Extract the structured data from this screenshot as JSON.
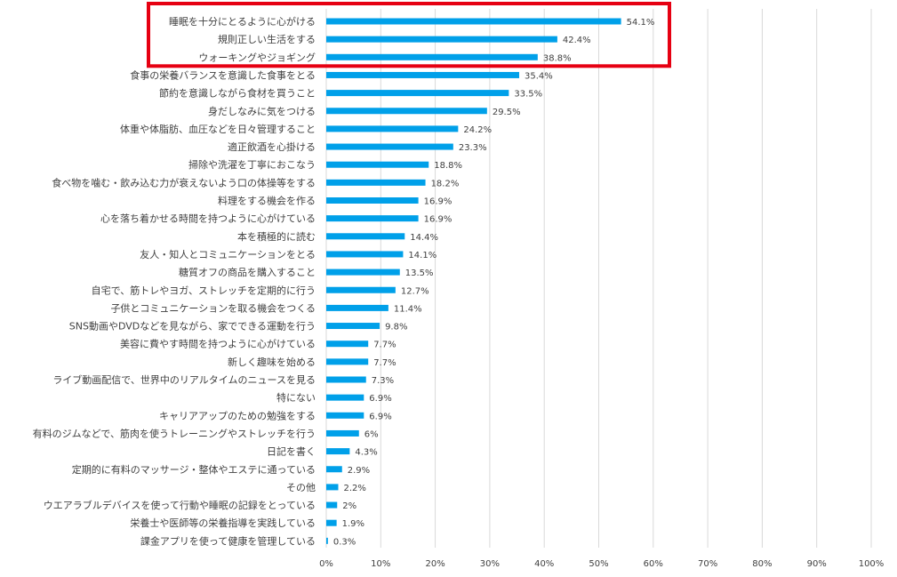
{
  "chart_data": {
    "type": "bar",
    "orientation": "horizontal",
    "categories": [
      "睡眠を十分にとるように心がける",
      "規則正しい生活をする",
      "ウォーキングやジョギング",
      "食事の栄養バランスを意識した食事をとる",
      "節約を意識しながら食材を買うこと",
      "身だしなみに気をつける",
      "体重や体脂肪、血圧などを日々管理すること",
      "適正飲酒を心掛ける",
      "掃除や洗濯を丁寧におこなう",
      "食べ物を噛む・飲み込む力が衰えないよう口の体操等をする",
      "料理をする機会を作る",
      "心を落ち着かせる時間を持つように心がけている",
      "本を積極的に読む",
      "友人・知人とコミュニケーションをとる",
      "糖質オフの商品を購入すること",
      "自宅で、筋トレやヨガ、ストレッチを定期的に行う",
      "子供とコミュニケーションを取る機会をつくる",
      "SNS動画やDVDなどを見ながら、家でできる運動を行う",
      "美容に費やす時間を持つように心がけている",
      "新しく趣味を始める",
      "ライブ動画配信で、世界中のリアルタイムのニュースを見る",
      "特にない",
      "キャリアアップのための勉強をする",
      "有料のジムなどで、筋肉を使うトレーニングやストレッチを行う",
      "日記を書く",
      "定期的に有料のマッサージ・整体やエステに通っている",
      "その他",
      "ウエアラブルデバイスを使って行動や睡眠の記録をとっている",
      "栄養士や医師等の栄養指導を実践している",
      "課金アプリを使って健康を管理している"
    ],
    "values": [
      54.1,
      42.4,
      38.8,
      35.4,
      33.5,
      29.5,
      24.2,
      23.3,
      18.8,
      18.2,
      16.9,
      16.9,
      14.4,
      14.1,
      13.5,
      12.7,
      11.4,
      9.8,
      7.7,
      7.7,
      7.3,
      6.9,
      6.9,
      6,
      4.3,
      2.9,
      2.2,
      2,
      1.9,
      0.3
    ],
    "value_labels": [
      "54.1%",
      "42.4%",
      "38.8%",
      "35.4%",
      "33.5%",
      "29.5%",
      "24.2%",
      "23.3%",
      "18.8%",
      "18.2%",
      "16.9%",
      "16.9%",
      "14.4%",
      "14.1%",
      "13.5%",
      "12.7%",
      "11.4%",
      "9.8%",
      "7.7%",
      "7.7%",
      "7.3%",
      "6.9%",
      "6.9%",
      "6%",
      "4.3%",
      "2.9%",
      "2.2%",
      "2%",
      "1.9%",
      "0.3%"
    ],
    "x_ticks": [
      "0%",
      "10%",
      "20%",
      "30%",
      "40%",
      "50%",
      "60%",
      "70%",
      "80%",
      "90%",
      "100%"
    ],
    "xlim": [
      0,
      100
    ],
    "grid": "vertical",
    "legend": "none",
    "bar_color": "#00a0e9",
    "highlight": {
      "items": [
        "睡眠を十分にとるように心がける",
        "規則正しい生活をする",
        "ウォーキングやジョギング"
      ],
      "color": "#e60012"
    }
  }
}
